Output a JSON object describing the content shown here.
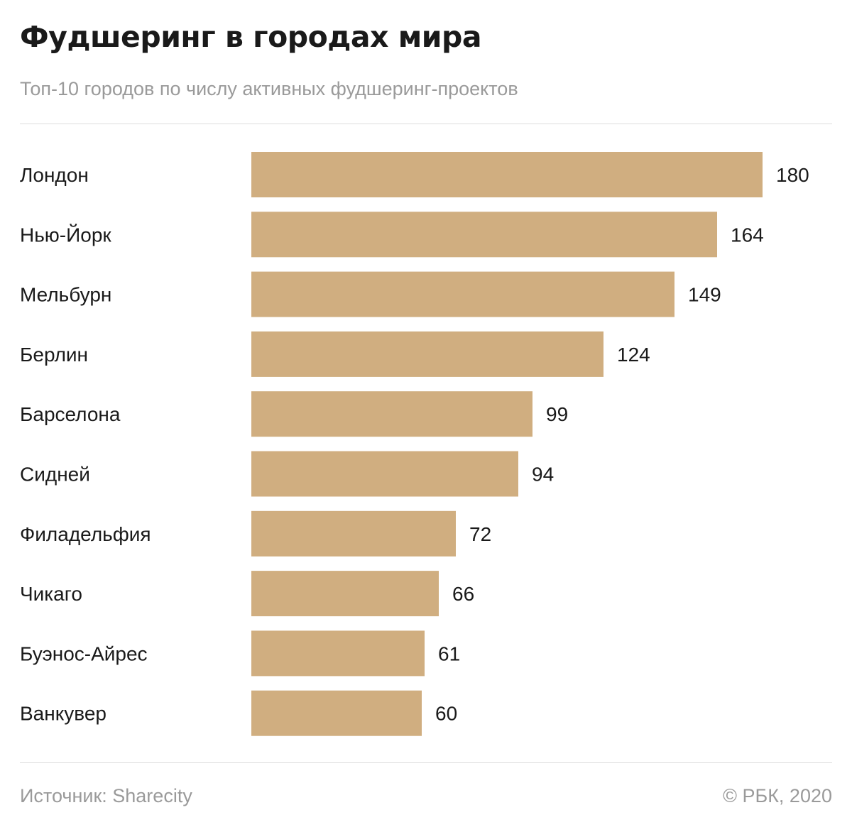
{
  "header": {
    "title": "Фудшеринг в городах мира",
    "subtitle": "Топ-10 городов по числу активных фудшеринг-проектов"
  },
  "footer": {
    "source": "Источник: Sharecity",
    "copyright": "© РБК, 2020"
  },
  "colors": {
    "bar": "#d0ae80",
    "label": "#1a1a1a",
    "rule": "#dcdcdc",
    "muted": "#9a9a9a"
  },
  "chart_data": {
    "type": "bar",
    "orientation": "horizontal",
    "title": "Фудшеринг в городах мира",
    "subtitle": "Топ-10 городов по числу активных фудшеринг-проектов",
    "categories": [
      "Лондон",
      "Нью-Йорк",
      "Мельбурн",
      "Берлин",
      "Барселона",
      "Сидней",
      "Филадельфия",
      "Чикаго",
      "Буэнос-Айрес",
      "Ванкувер"
    ],
    "values": [
      180,
      164,
      149,
      124,
      99,
      94,
      72,
      66,
      61,
      60
    ],
    "xlim": [
      0,
      180
    ],
    "data_labels": true,
    "grid": false,
    "legend": "none"
  }
}
